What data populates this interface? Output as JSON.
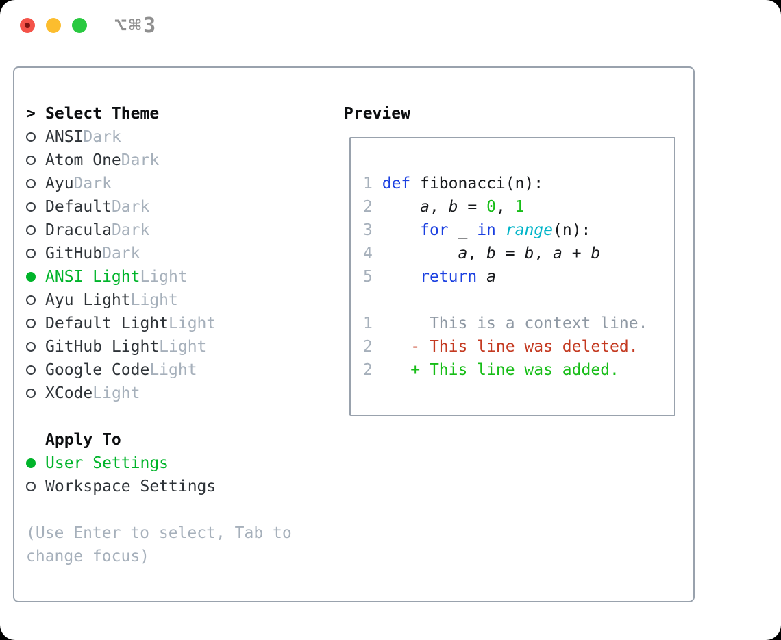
{
  "window": {
    "title": "⌥⌘3"
  },
  "colors": {
    "accent_green": "#00b42a",
    "keyword_blue": "#1a3fe0",
    "builtin_cyan": "#00b4c8",
    "number_green": "#17bd17",
    "added_green": "#17bd17",
    "deleted_red": "#c43a21",
    "muted_gray": "#a6b0bb",
    "context_gray": "#8f99a4",
    "text_dark": "#24292e",
    "border_gray": "#99a2ad",
    "title_gray": "#8f8f8f",
    "traffic_red": "#f45349",
    "traffic_yellow": "#fcbd2e",
    "traffic_green": "#29c940"
  },
  "theme_picker": {
    "header_marker": ">",
    "header": "Select Theme",
    "items": [
      {
        "name": "ANSI",
        "variant": "Dark",
        "selected": false
      },
      {
        "name": "Atom One",
        "variant": "Dark",
        "selected": false
      },
      {
        "name": "Ayu",
        "variant": "Dark",
        "selected": false
      },
      {
        "name": "Default",
        "variant": "Dark",
        "selected": false
      },
      {
        "name": "Dracula",
        "variant": "Dark",
        "selected": false
      },
      {
        "name": "GitHub",
        "variant": "Dark",
        "selected": false
      },
      {
        "name": "ANSI Light",
        "variant": "Light",
        "selected": true
      },
      {
        "name": "Ayu Light",
        "variant": "Light",
        "selected": false
      },
      {
        "name": "Default Light",
        "variant": "Light",
        "selected": false
      },
      {
        "name": "GitHub Light",
        "variant": "Light",
        "selected": false
      },
      {
        "name": "Google Code",
        "variant": "Light",
        "selected": false
      },
      {
        "name": "XCode",
        "variant": "Light",
        "selected": false
      }
    ]
  },
  "apply_to": {
    "header": "Apply To",
    "options": [
      {
        "label": "User Settings",
        "selected": true
      },
      {
        "label": "Workspace Settings",
        "selected": false
      }
    ]
  },
  "help": {
    "lines": [
      "(Use Enter to select, Tab to",
      "change focus)"
    ]
  },
  "preview": {
    "header": "Preview",
    "code_lines": [
      [
        [
          "num",
          "1"
        ],
        [
          "plain",
          " "
        ],
        [
          "kw",
          "def"
        ],
        [
          "plain",
          " fibonacci(n):"
        ]
      ],
      [
        [
          "num",
          "2"
        ],
        [
          "plain",
          "     "
        ],
        [
          "var",
          "a"
        ],
        [
          "plain",
          ", "
        ],
        [
          "var",
          "b"
        ],
        [
          "plain",
          " = "
        ],
        [
          "lit",
          "0"
        ],
        [
          "plain",
          ", "
        ],
        [
          "lit",
          "1"
        ]
      ],
      [
        [
          "num",
          "3"
        ],
        [
          "plain",
          "     "
        ],
        [
          "kw",
          "for"
        ],
        [
          "plain",
          " _ "
        ],
        [
          "kw",
          "in"
        ],
        [
          "plain",
          " "
        ],
        [
          "builtin",
          "range"
        ],
        [
          "plain",
          "(n):"
        ]
      ],
      [
        [
          "num",
          "4"
        ],
        [
          "plain",
          "         "
        ],
        [
          "var",
          "a"
        ],
        [
          "plain",
          ", "
        ],
        [
          "var",
          "b"
        ],
        [
          "plain",
          " = "
        ],
        [
          "var",
          "b"
        ],
        [
          "plain",
          ", "
        ],
        [
          "var",
          "a"
        ],
        [
          "plain",
          " + "
        ],
        [
          "var",
          "b"
        ]
      ],
      [
        [
          "num",
          "5"
        ],
        [
          "plain",
          "     "
        ],
        [
          "kw",
          "return"
        ],
        [
          "plain",
          " "
        ],
        [
          "var",
          "a"
        ]
      ],
      [],
      [
        [
          "num",
          "1"
        ],
        [
          "plain",
          "      "
        ],
        [
          "ctx",
          "This is a context line."
        ]
      ],
      [
        [
          "num",
          "2"
        ],
        [
          "plain",
          "    "
        ],
        [
          "del",
          "- This line was deleted."
        ]
      ],
      [
        [
          "num",
          "2"
        ],
        [
          "plain",
          "    "
        ],
        [
          "add",
          "+ This line was added."
        ]
      ]
    ]
  }
}
